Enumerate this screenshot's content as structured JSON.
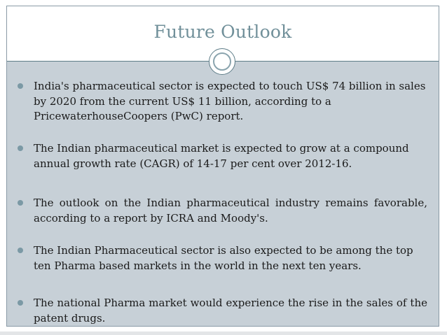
{
  "slide": {
    "title": "Future Outlook",
    "bullets": [
      "India's pharmaceutical sector is expected to touch US$ 74 billion in sales by 2020 from the current US$ 11 billion, according to a PricewaterhouseCoopers (PwC) report.",
      "The Indian pharmaceutical market is expected to grow at a compound annual growth rate (CAGR) of 14-17 per cent over 2012-16.",
      "The outlook on the Indian pharmaceutical industry remains favorable, according to a report by ICRA and Moody's.",
      "The Indian Pharmaceutical sector is also expected to be among the top ten Pharma based markets in the world in the next ten years.",
      "The national Pharma market would experience the rise in the sales of the patent drugs."
    ]
  },
  "colors": {
    "title": "#71909a",
    "content_background": "#c7d0d7",
    "bullet_dot": "#7b99a5",
    "frame_border": "#8a9aa6"
  }
}
